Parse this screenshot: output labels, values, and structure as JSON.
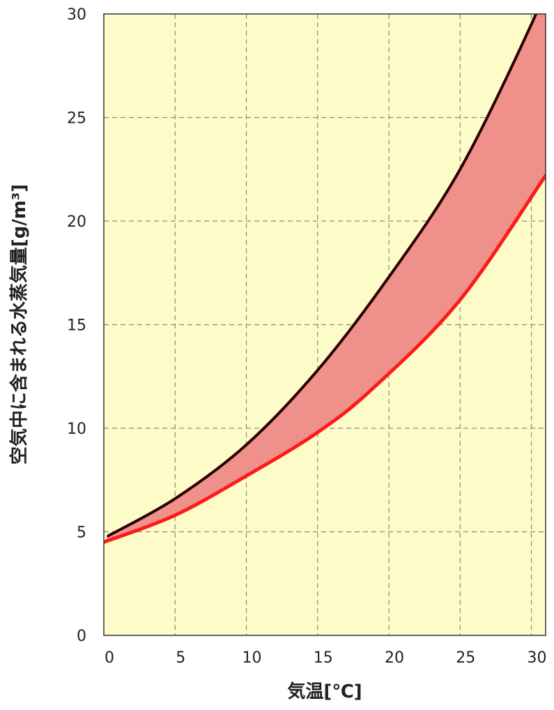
{
  "chart_data": {
    "type": "line",
    "title": "",
    "xlabel": "気温[℃]",
    "ylabel": "空気中に含まれる水蒸気量[g/m³]",
    "xlim": [
      0,
      31
    ],
    "ylim": [
      0,
      30
    ],
    "xticks": [
      0,
      5,
      10,
      15,
      20,
      25,
      30
    ],
    "yticks": [
      0,
      5,
      10,
      15,
      20,
      25,
      30
    ],
    "grid": true,
    "legend": "none",
    "colors": {
      "plot_background": "#fdfcc8",
      "band_fill": "#f4a6a0",
      "upper_line": "#2a0000",
      "lower_line": "#ff1a1a",
      "frame": "#333333"
    },
    "series": [
      {
        "x": [
          0.3,
          5,
          10,
          15,
          20,
          25,
          30,
          31
        ],
        "values": [
          4.8,
          6.6,
          9.2,
          12.8,
          17.3,
          22.5,
          29.5,
          31.5
        ]
      },
      {
        "x": [
          0,
          5,
          10,
          15,
          19,
          25,
          31
        ],
        "values": [
          4.5,
          5.8,
          7.7,
          9.8,
          12.0,
          16.2,
          22.2
        ]
      }
    ],
    "filled_between_series": true
  }
}
